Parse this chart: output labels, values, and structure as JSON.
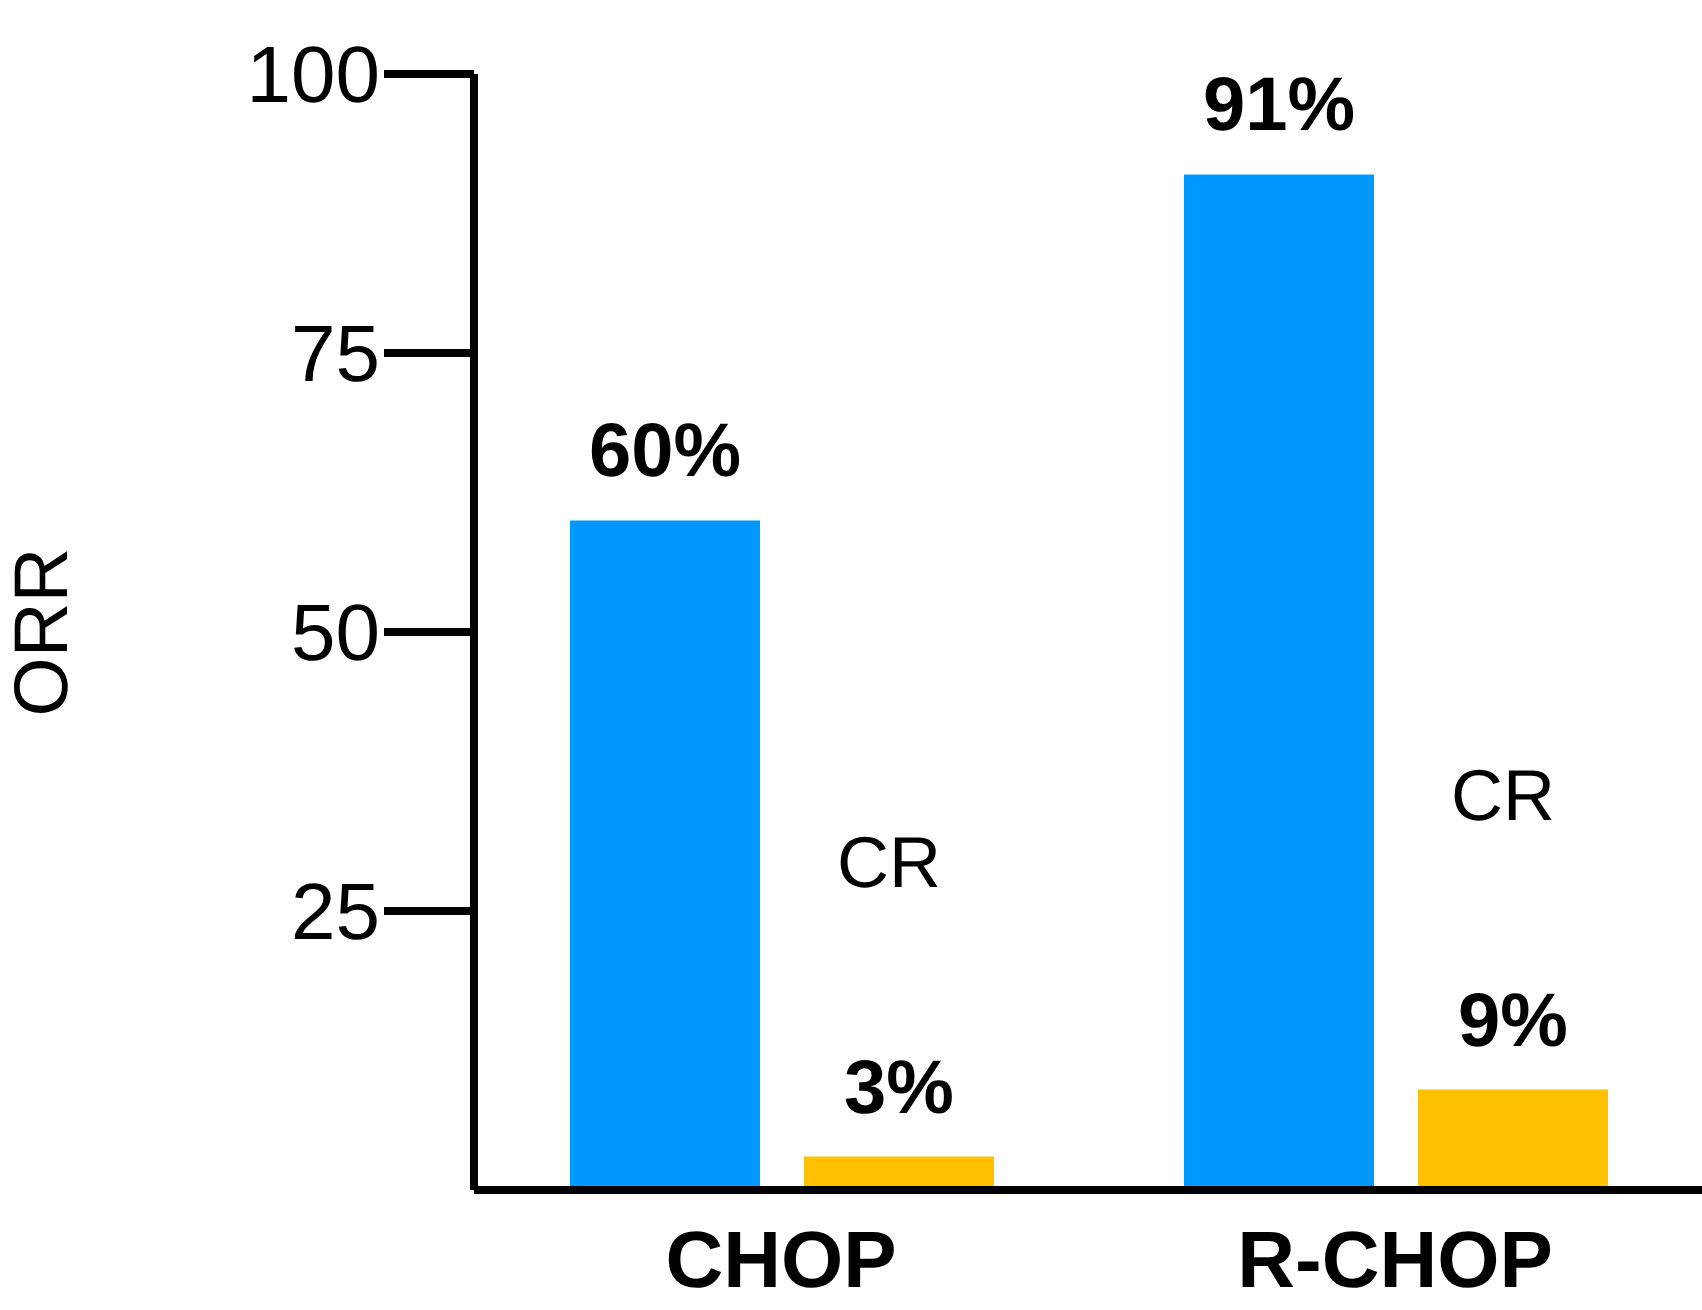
{
  "chart_data": {
    "type": "bar",
    "ylabel": "ORR",
    "categories": [
      "CHOP",
      "R-CHOP"
    ],
    "series": [
      {
        "color": "#0099ff",
        "values": [
          60,
          91
        ],
        "value_labels": [
          "60%",
          "91%"
        ]
      },
      {
        "name": "CR",
        "color": "#ffc000",
        "values": [
          3,
          9
        ],
        "value_labels": [
          "3%",
          "9%"
        ]
      }
    ],
    "ylim": [
      0,
      100
    ],
    "yticks": [
      25,
      50,
      75,
      100
    ],
    "grid": false,
    "legend": false
  }
}
